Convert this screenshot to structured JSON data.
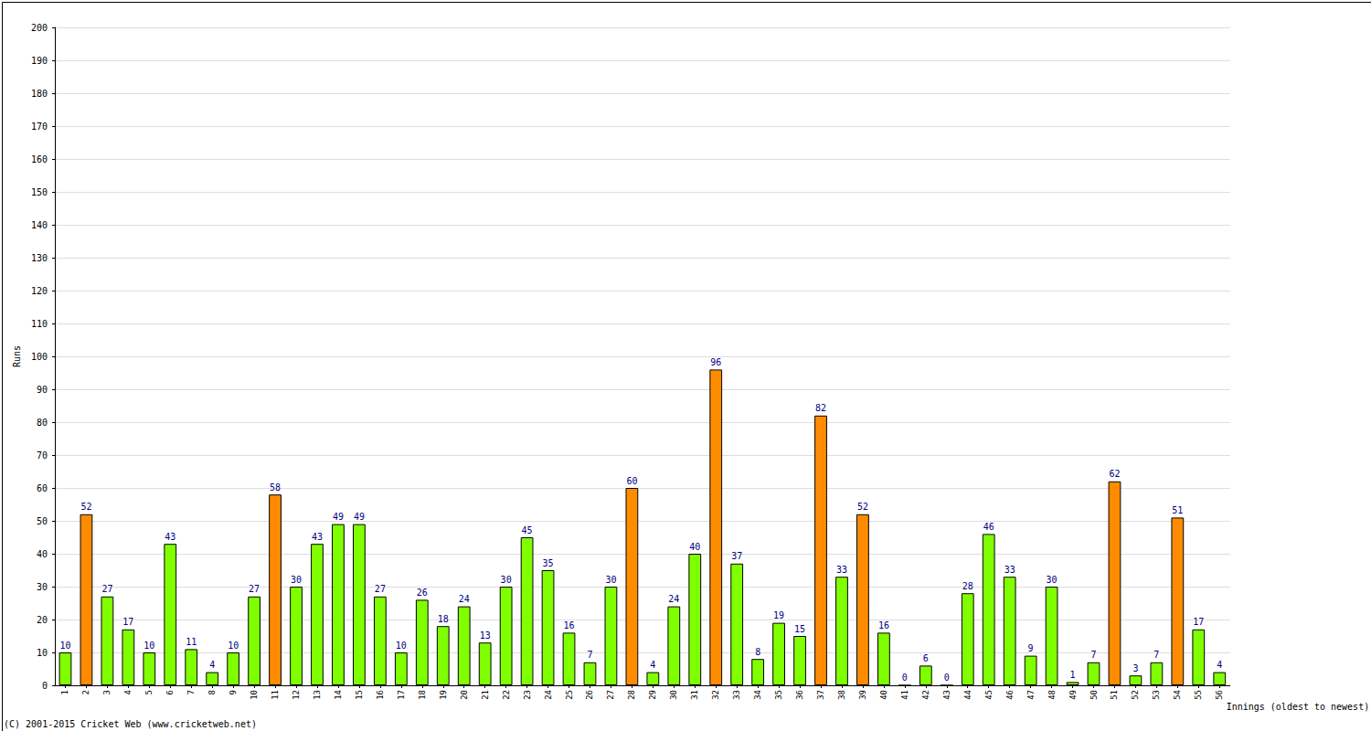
{
  "chart_data": {
    "type": "bar",
    "y_label": "Runs",
    "x_label": "Innings (oldest to newest)",
    "annotation": "(C) 2001-2015 Cricket Web (www.cricketweb.net)",
    "categories": [
      "1",
      "2",
      "3",
      "4",
      "5",
      "6",
      "7",
      "8",
      "9",
      "10",
      "11",
      "12",
      "13",
      "14",
      "15",
      "16",
      "17",
      "18",
      "19",
      "20",
      "21",
      "22",
      "23",
      "24",
      "25",
      "26",
      "27",
      "28",
      "29",
      "30",
      "31",
      "32",
      "33",
      "34",
      "35",
      "36",
      "37",
      "38",
      "39",
      "40",
      "41",
      "42",
      "43",
      "44",
      "45",
      "46",
      "47",
      "48",
      "49",
      "50",
      "51",
      "52",
      "53",
      "54",
      "55",
      "56"
    ],
    "values": [
      10,
      52,
      27,
      17,
      10,
      43,
      11,
      4,
      10,
      27,
      58,
      30,
      43,
      49,
      49,
      27,
      10,
      26,
      18,
      24,
      13,
      30,
      45,
      35,
      16,
      7,
      30,
      60,
      4,
      24,
      40,
      96,
      37,
      8,
      19,
      15,
      82,
      33,
      52,
      16,
      0,
      6,
      0,
      28,
      46,
      33,
      9,
      30,
      1,
      7,
      62,
      3,
      7,
      51,
      17,
      4
    ],
    "colors": [
      "#80ff00",
      "#ff8c00",
      "#80ff00",
      "#80ff00",
      "#80ff00",
      "#80ff00",
      "#80ff00",
      "#80ff00",
      "#80ff00",
      "#80ff00",
      "#ff8c00",
      "#80ff00",
      "#80ff00",
      "#80ff00",
      "#80ff00",
      "#80ff00",
      "#80ff00",
      "#80ff00",
      "#80ff00",
      "#80ff00",
      "#80ff00",
      "#80ff00",
      "#80ff00",
      "#80ff00",
      "#80ff00",
      "#80ff00",
      "#80ff00",
      "#ff8c00",
      "#80ff00",
      "#80ff00",
      "#80ff00",
      "#ff8c00",
      "#80ff00",
      "#80ff00",
      "#80ff00",
      "#80ff00",
      "#ff8c00",
      "#80ff00",
      "#ff8c00",
      "#80ff00",
      "#80ff00",
      "#80ff00",
      "#80ff00",
      "#80ff00",
      "#80ff00",
      "#80ff00",
      "#80ff00",
      "#80ff00",
      "#80ff00",
      "#80ff00",
      "#ff8c00",
      "#80ff00",
      "#80ff00",
      "#ff8c00",
      "#80ff00",
      "#80ff00"
    ],
    "ylim": [
      0,
      200
    ],
    "yticks": [
      0,
      10,
      20,
      30,
      40,
      50,
      60,
      70,
      80,
      90,
      100,
      110,
      120,
      130,
      140,
      150,
      160,
      170,
      180,
      190,
      200
    ],
    "grid": true,
    "data_labels": true
  }
}
